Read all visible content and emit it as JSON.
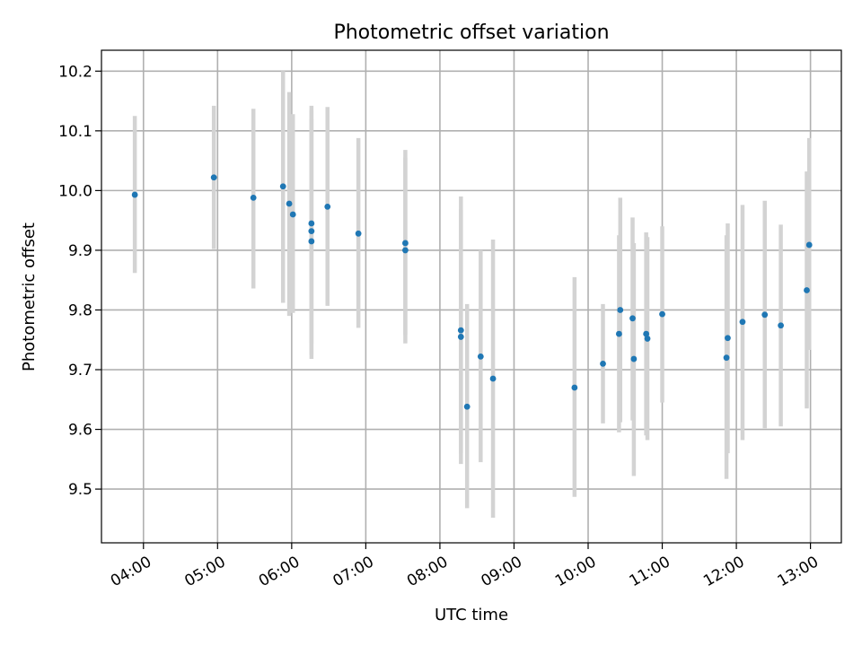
{
  "chart_data": {
    "type": "scatter",
    "title": "Photometric offset variation",
    "xlabel": "UTC time",
    "ylabel": "Photometric offset",
    "xlim": [
      "03:26",
      "13:25"
    ],
    "ylim": [
      9.41,
      10.235
    ],
    "x_ticks": [
      "04:00",
      "05:00",
      "06:00",
      "07:00",
      "08:00",
      "09:00",
      "10:00",
      "11:00",
      "12:00",
      "13:00"
    ],
    "y_ticks": [
      "9.5",
      "9.6",
      "9.7",
      "9.8",
      "9.9",
      "10.0",
      "10.1",
      "10.2"
    ],
    "grid": true,
    "marker_color": "#1f77b4",
    "errorbar_color": "#d3d3d3",
    "points": [
      {
        "time": "03:53",
        "y": 9.993,
        "low": 9.862,
        "high": 10.125
      },
      {
        "time": "04:57",
        "y": 10.022,
        "low": 9.902,
        "high": 10.142
      },
      {
        "time": "05:29",
        "y": 9.988,
        "low": 9.836,
        "high": 10.137
      },
      {
        "time": "05:53",
        "y": 10.007,
        "low": 9.812,
        "high": 10.2
      },
      {
        "time": "05:58",
        "y": 9.978,
        "low": 9.79,
        "high": 10.165
      },
      {
        "time": "06:01",
        "y": 9.96,
        "low": 9.795,
        "high": 10.128
      },
      {
        "time": "06:16",
        "y": 9.945,
        "low": 9.745,
        "high": 10.142
      },
      {
        "time": "06:16",
        "y": 9.932,
        "low": 9.725,
        "high": 10.135
      },
      {
        "time": "06:16",
        "y": 9.915,
        "low": 9.718,
        "high": 10.12
      },
      {
        "time": "06:29",
        "y": 9.973,
        "low": 9.807,
        "high": 10.14
      },
      {
        "time": "06:54",
        "y": 9.928,
        "low": 9.77,
        "high": 10.088
      },
      {
        "time": "07:32",
        "y": 9.912,
        "low": 9.758,
        "high": 10.068
      },
      {
        "time": "07:32",
        "y": 9.9,
        "low": 9.744,
        "high": 10.055
      },
      {
        "time": "08:17",
        "y": 9.766,
        "low": 9.56,
        "high": 9.99
      },
      {
        "time": "08:17",
        "y": 9.755,
        "low": 9.542,
        "high": 9.968
      },
      {
        "time": "08:22",
        "y": 9.638,
        "low": 9.468,
        "high": 9.81
      },
      {
        "time": "08:33",
        "y": 9.722,
        "low": 9.545,
        "high": 9.9
      },
      {
        "time": "08:43",
        "y": 9.685,
        "low": 9.452,
        "high": 9.918
      },
      {
        "time": "09:49",
        "y": 9.67,
        "low": 9.487,
        "high": 9.855
      },
      {
        "time": "10:12",
        "y": 9.71,
        "low": 9.61,
        "high": 9.81
      },
      {
        "time": "10:25",
        "y": 9.76,
        "low": 9.595,
        "high": 9.925
      },
      {
        "time": "10:26",
        "y": 9.8,
        "low": 9.612,
        "high": 9.988
      },
      {
        "time": "10:36",
        "y": 9.786,
        "low": 9.615,
        "high": 9.955
      },
      {
        "time": "10:37",
        "y": 9.718,
        "low": 9.522,
        "high": 9.912
      },
      {
        "time": "10:47",
        "y": 9.76,
        "low": 9.59,
        "high": 9.93
      },
      {
        "time": "10:48",
        "y": 9.752,
        "low": 9.582,
        "high": 9.922
      },
      {
        "time": "11:00",
        "y": 9.793,
        "low": 9.645,
        "high": 9.94
      },
      {
        "time": "11:52",
        "y": 9.72,
        "low": 9.517,
        "high": 9.925
      },
      {
        "time": "11:53",
        "y": 9.753,
        "low": 9.56,
        "high": 9.945
      },
      {
        "time": "12:05",
        "y": 9.78,
        "low": 9.582,
        "high": 9.976
      },
      {
        "time": "12:23",
        "y": 9.792,
        "low": 9.602,
        "high": 9.983
      },
      {
        "time": "12:36",
        "y": 9.774,
        "low": 9.605,
        "high": 9.943
      },
      {
        "time": "12:57",
        "y": 9.833,
        "low": 9.635,
        "high": 10.032
      },
      {
        "time": "12:59",
        "y": 9.909,
        "low": 9.733,
        "high": 10.088
      }
    ]
  }
}
